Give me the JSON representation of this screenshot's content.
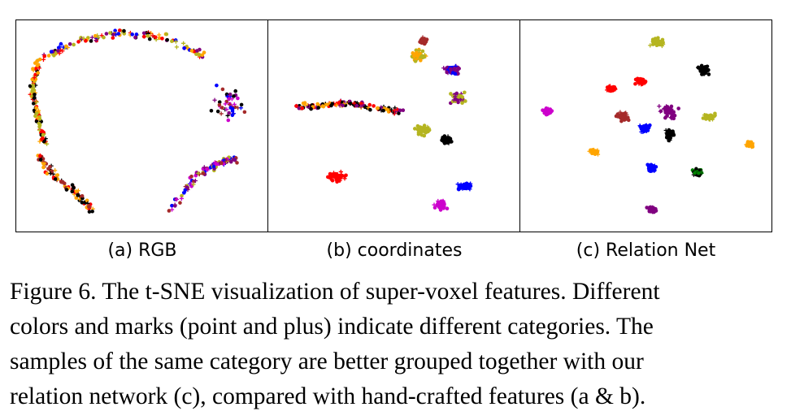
{
  "chart_data": [
    {
      "type": "scatter",
      "panel_label": "(a) RGB",
      "markers": [
        "point",
        "plus"
      ],
      "category_colors": [
        "#ff0000",
        "#ffa500",
        "#000000",
        "#0000ff",
        "#800080",
        "#cc00cc",
        "#b5b520",
        "#a52a2a",
        "#008000"
      ],
      "clusters": [
        {
          "shape": "arc",
          "path": [
            [
              -0.9,
              0.7
            ],
            [
              -0.6,
              0.9
            ],
            [
              -0.2,
              1.0
            ],
            [
              0.2,
              0.95
            ],
            [
              0.55,
              0.75
            ]
          ],
          "spread": 0.05,
          "colors": [
            "#ff0000",
            "#000000",
            "#800080",
            "#ffa500",
            "#b5b520",
            "#0000ff"
          ]
        },
        {
          "shape": "arc",
          "path": [
            [
              -0.9,
              0.7
            ],
            [
              -0.95,
              0.4
            ],
            [
              -0.9,
              0.1
            ],
            [
              -0.85,
              -0.2
            ]
          ],
          "spread": 0.04,
          "colors": [
            "#ffa500",
            "#000000",
            "#ff0000",
            "#b5b520"
          ]
        },
        {
          "shape": "arc",
          "path": [
            [
              -0.9,
              -0.3
            ],
            [
              -0.75,
              -0.55
            ],
            [
              -0.55,
              -0.75
            ],
            [
              -0.4,
              -0.95
            ]
          ],
          "spread": 0.05,
          "colors": [
            "#ffa500",
            "#000000",
            "#ff0000",
            "#a52a2a"
          ]
        },
        {
          "shape": "blob",
          "center": [
            0.75,
            0.25
          ],
          "r": [
            0.2,
            0.22
          ],
          "colors": [
            "#800080",
            "#cc00cc",
            "#a52a2a",
            "#0000ff",
            "#000000"
          ]
        },
        {
          "shape": "arc",
          "path": [
            [
              0.25,
              -0.9
            ],
            [
              0.45,
              -0.55
            ],
            [
              0.65,
              -0.4
            ],
            [
              0.8,
              -0.35
            ]
          ],
          "spread": 0.06,
          "colors": [
            "#800080",
            "#b5b520",
            "#0000ff",
            "#a52a2a",
            "#cc00cc"
          ]
        }
      ]
    },
    {
      "type": "scatter",
      "panel_label": "(b) coordinates",
      "markers": [
        "point",
        "plus"
      ],
      "category_colors": [
        "#ff0000",
        "#ffa500",
        "#000000",
        "#0000ff",
        "#800080",
        "#cc00cc",
        "#b5b520",
        "#a52a2a",
        "#008000"
      ],
      "clusters": [
        {
          "shape": "blob",
          "center": [
            -0.5,
            -0.55
          ],
          "r": [
            0.12,
            0.07
          ],
          "colors": [
            "#ff0000"
          ]
        },
        {
          "shape": "blob",
          "center": [
            0.2,
            0.75
          ],
          "r": [
            0.08,
            0.09
          ],
          "colors": [
            "#ffa500",
            "#b5b520"
          ]
        },
        {
          "shape": "blob",
          "center": [
            0.5,
            0.6
          ],
          "r": [
            0.1,
            0.06
          ],
          "colors": [
            "#0000ff",
            "#800080"
          ]
        },
        {
          "shape": "blob",
          "center": [
            0.25,
            0.92
          ],
          "r": [
            0.04,
            0.04
          ],
          "colors": [
            "#a52a2a"
          ]
        },
        {
          "shape": "arc",
          "path": [
            [
              -0.85,
              0.2
            ],
            [
              -0.65,
              0.22
            ],
            [
              -0.4,
              0.25
            ],
            [
              -0.2,
              0.2
            ],
            [
              0.1,
              0.15
            ]
          ],
          "spread": 0.05,
          "colors": [
            "#800080",
            "#000000",
            "#ffa500",
            "#ff0000"
          ]
        },
        {
          "shape": "blob",
          "center": [
            0.25,
            -0.05
          ],
          "r": [
            0.09,
            0.08
          ],
          "colors": [
            "#b5b520"
          ]
        },
        {
          "shape": "blob",
          "center": [
            0.55,
            0.3
          ],
          "r": [
            0.08,
            0.09
          ],
          "colors": [
            "#b5b520",
            "#800080"
          ]
        },
        {
          "shape": "blob",
          "center": [
            0.4,
            -0.85
          ],
          "r": [
            0.07,
            0.06
          ],
          "colors": [
            "#cc00cc"
          ]
        },
        {
          "shape": "blob",
          "center": [
            0.6,
            -0.65
          ],
          "r": [
            0.1,
            0.05
          ],
          "colors": [
            "#0000ff"
          ]
        },
        {
          "shape": "blob",
          "center": [
            0.45,
            -0.15
          ],
          "r": [
            0.06,
            0.05
          ],
          "colors": [
            "#000000"
          ]
        }
      ]
    },
    {
      "type": "scatter",
      "panel_label": "(c) Relation Net",
      "markers": [
        "point",
        "plus"
      ],
      "category_colors": [
        "#ff0000",
        "#ffa500",
        "#000000",
        "#0000ff",
        "#800080",
        "#cc00cc",
        "#b5b520",
        "#a52a2a",
        "#008000"
      ],
      "clusters": [
        {
          "shape": "blob",
          "center": [
            0.1,
            0.9
          ],
          "r": [
            0.07,
            0.06
          ],
          "colors": [
            "#b5b520"
          ]
        },
        {
          "shape": "blob",
          "center": [
            0.5,
            0.6
          ],
          "r": [
            0.06,
            0.07
          ],
          "colors": [
            "#000000"
          ]
        },
        {
          "shape": "blob",
          "center": [
            -0.3,
            0.4
          ],
          "r": [
            0.05,
            0.04
          ],
          "colors": [
            "#ff0000"
          ]
        },
        {
          "shape": "blob",
          "center": [
            -0.05,
            0.48
          ],
          "r": [
            0.06,
            0.05
          ],
          "colors": [
            "#ff0000"
          ]
        },
        {
          "shape": "blob",
          "center": [
            -0.85,
            0.15
          ],
          "r": [
            0.05,
            0.05
          ],
          "colors": [
            "#cc00cc"
          ]
        },
        {
          "shape": "blob",
          "center": [
            -0.2,
            0.1
          ],
          "r": [
            0.07,
            0.06
          ],
          "colors": [
            "#a52a2a"
          ]
        },
        {
          "shape": "blob",
          "center": [
            0.2,
            0.15
          ],
          "r": [
            0.1,
            0.1
          ],
          "colors": [
            "#800080"
          ]
        },
        {
          "shape": "blob",
          "center": [
            0.0,
            -0.02
          ],
          "r": [
            0.07,
            0.06
          ],
          "colors": [
            "#0000ff"
          ]
        },
        {
          "shape": "blob",
          "center": [
            0.55,
            0.1
          ],
          "r": [
            0.07,
            0.05
          ],
          "colors": [
            "#b5b520"
          ]
        },
        {
          "shape": "blob",
          "center": [
            0.2,
            -0.1
          ],
          "r": [
            0.05,
            0.08
          ],
          "colors": [
            "#000000"
          ]
        },
        {
          "shape": "blob",
          "center": [
            -0.45,
            -0.28
          ],
          "r": [
            0.05,
            0.04
          ],
          "colors": [
            "#ffa500"
          ]
        },
        {
          "shape": "blob",
          "center": [
            0.05,
            -0.45
          ],
          "r": [
            0.05,
            0.05
          ],
          "colors": [
            "#0000ff"
          ]
        },
        {
          "shape": "blob",
          "center": [
            0.45,
            -0.5
          ],
          "r": [
            0.05,
            0.05
          ],
          "colors": [
            "#008000",
            "#000000"
          ]
        },
        {
          "shape": "blob",
          "center": [
            0.9,
            -0.2
          ],
          "r": [
            0.04,
            0.04
          ],
          "colors": [
            "#ffa500"
          ]
        },
        {
          "shape": "blob",
          "center": [
            0.05,
            -0.9
          ],
          "r": [
            0.05,
            0.04
          ],
          "colors": [
            "#800080"
          ]
        }
      ]
    }
  ],
  "labels": {
    "a": "(a) RGB",
    "b": "(b) coordinates",
    "c": "(c) Relation Net"
  },
  "caption": {
    "line1": "Figure 6. The t-SNE visualization of super-voxel features. Different",
    "line2": "colors and marks (point and plus) indicate different categories. The",
    "line3": "samples of the same category are better grouped together with our",
    "line4": "relation network (c), compared with hand-crafted features (a & b)."
  }
}
